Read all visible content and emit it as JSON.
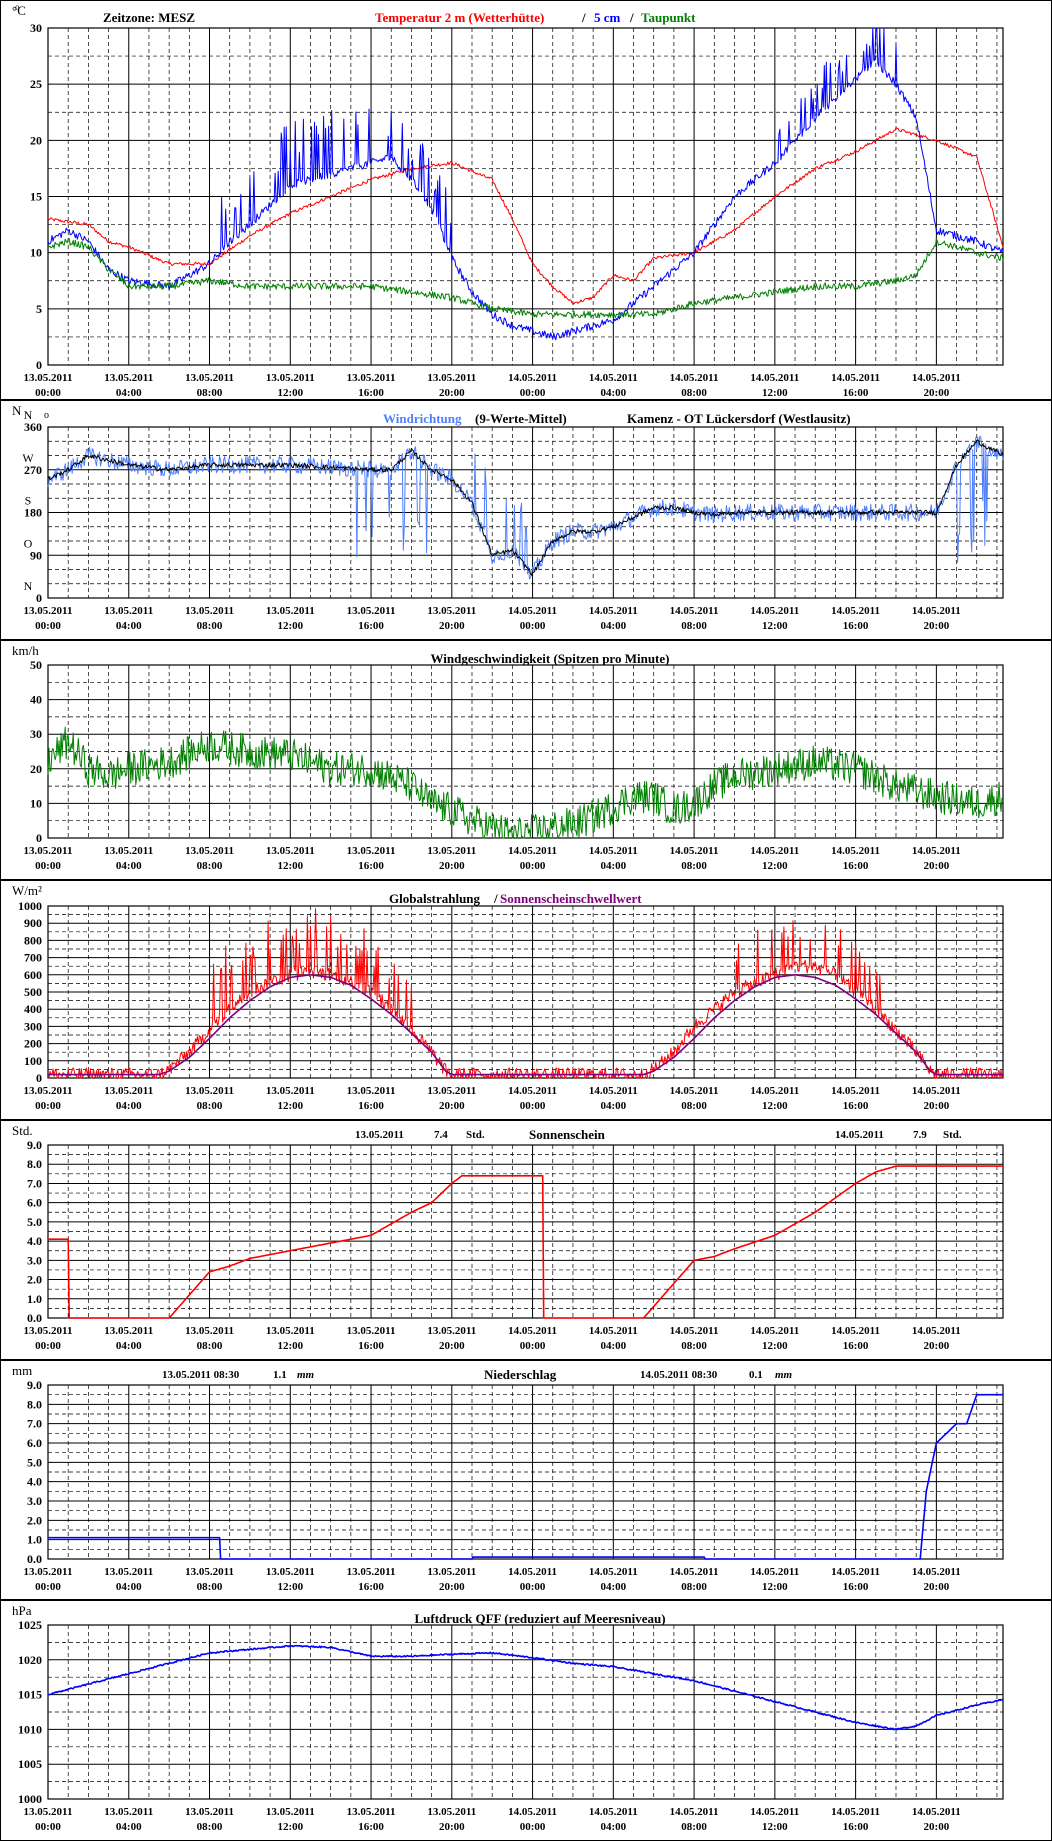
{
  "colors": {
    "red": "#ff0000",
    "blue": "#0000ff",
    "green": "#008000",
    "lightblue": "#4d7fff",
    "purple": "#800080",
    "black": "#000000"
  },
  "x_ticks": {
    "dates": [
      "13.05.2011",
      "13.05.2011",
      "13.05.2011",
      "13.05.2011",
      "13.05.2011",
      "13.05.2011",
      "14.05.2011",
      "14.05.2011",
      "14.05.2011",
      "14.05.2011",
      "14.05.2011",
      "14.05.2011"
    ],
    "times": [
      "00:00",
      "04:00",
      "08:00",
      "12:00",
      "16:00",
      "20:00",
      "00:00",
      "04:00",
      "08:00",
      "12:00",
      "16:00",
      "20:00"
    ]
  },
  "chart_data": [
    {
      "id": "temperature",
      "type": "line",
      "unit": "°C",
      "ylim": [
        0,
        30
      ],
      "ystep": 5,
      "yminor": 2.5,
      "ylabels": [
        "0",
        "5",
        "10",
        "15",
        "20",
        "25",
        "30"
      ],
      "header": {
        "zone": "Zeitzone: MESZ",
        "t1": "Temperatur 2 m (Wetterhütte)",
        "sep": "/",
        "t2": "5 cm",
        "sep2": "/",
        "t3": "Taupunkt"
      },
      "series": [
        {
          "name": "Temperatur 2 m (Wetterhütte)",
          "color": "#ff0000",
          "noise": 0.15,
          "x": [
            0,
            2,
            3,
            4,
            6,
            8,
            10,
            12,
            14,
            16,
            18,
            20,
            22,
            23,
            24,
            25,
            26,
            27,
            28,
            29,
            30,
            32,
            34,
            36,
            38,
            40,
            42,
            44,
            46,
            47.3
          ],
          "y": [
            13,
            12.5,
            11,
            10.5,
            9,
            9,
            11.5,
            13.5,
            15,
            16.5,
            17.5,
            18,
            16.5,
            13,
            9,
            7,
            5.5,
            6,
            8,
            7.5,
            9.5,
            10,
            12,
            15,
            17.5,
            19,
            21,
            20,
            18.5,
            10.5
          ]
        },
        {
          "name": "5 cm",
          "color": "#0000ff",
          "noise": 0.35,
          "x": [
            0,
            1,
            2,
            3,
            4,
            6,
            8,
            9,
            10,
            12,
            14,
            16,
            17,
            18,
            19,
            20,
            21,
            22,
            23,
            24,
            25,
            26,
            27,
            28,
            29,
            30,
            32,
            34,
            36,
            38,
            40,
            41,
            42,
            43,
            44,
            46,
            47.3
          ],
          "y": [
            11,
            12,
            11,
            8.5,
            7.5,
            7,
            9,
            11,
            12.5,
            16,
            17,
            18,
            18.5,
            16.5,
            14,
            9.5,
            6.5,
            4.5,
            3.5,
            3,
            2.5,
            3,
            3.5,
            4,
            5.5,
            7,
            10,
            15,
            18,
            22,
            25.5,
            27,
            25,
            22,
            12,
            11,
            10
          ],
          "spikes": [
            [
              8.5,
              16,
              6
            ],
            [
              16.5,
              20,
              5
            ],
            [
              36,
              42,
              4
            ]
          ]
        },
        {
          "name": "Taupunkt",
          "color": "#008000",
          "noise": 0.3,
          "x": [
            0,
            1,
            2,
            3,
            4,
            6,
            8,
            10,
            12,
            14,
            16,
            18,
            20,
            22,
            24,
            26,
            28,
            30,
            32,
            34,
            36,
            38,
            40,
            42,
            43,
            44,
            46,
            47.3
          ],
          "y": [
            10.5,
            11,
            10.5,
            8.5,
            7,
            7,
            7.5,
            7,
            7,
            7,
            7,
            6.5,
            6,
            5,
            4.5,
            4.5,
            4.5,
            4.5,
            5.5,
            6,
            6.5,
            7,
            7,
            7.5,
            8,
            11,
            10,
            9.5
          ]
        }
      ]
    },
    {
      "id": "wind_direction",
      "type": "line",
      "unit": "N",
      "ylim": [
        0,
        360
      ],
      "ystep": 90,
      "yminor": 30,
      "ylabels": [
        "0",
        "90",
        "180",
        "270",
        "360"
      ],
      "compass": [
        "N",
        "O",
        "S",
        "W",
        "N"
      ],
      "header": {
        "t1": "Windrichtung",
        "t1b": "(9-Werte-Mittel)",
        "t2": "Kamenz - OT Lückersdorf (Westlausitz)"
      },
      "series": [
        {
          "name": "Windrichtung",
          "color": "#4d7fff",
          "noise": 18,
          "x": [
            0,
            1,
            2,
            4,
            6,
            8,
            10,
            12,
            14,
            16,
            17,
            18,
            19,
            20,
            21,
            22,
            23,
            24,
            25,
            26,
            27,
            28,
            29,
            30,
            31,
            32,
            33,
            34,
            35,
            36,
            38,
            40,
            42,
            44,
            45,
            46,
            47.3
          ],
          "y": [
            250,
            270,
            300,
            280,
            270,
            280,
            280,
            280,
            275,
            270,
            270,
            310,
            270,
            250,
            200,
            90,
            100,
            50,
            120,
            140,
            140,
            150,
            170,
            190,
            190,
            180,
            175,
            180,
            180,
            180,
            180,
            180,
            180,
            180,
            280,
            330,
            300
          ],
          "spikes": [
            [
              15,
              19,
              -200
            ],
            [
              21,
              24,
              160
            ],
            [
              45,
              47,
              -230
            ]
          ]
        },
        {
          "name": "9-Werte-Mittel",
          "color": "#000000",
          "noise": 5,
          "x": [
            0,
            1,
            2,
            4,
            6,
            8,
            10,
            12,
            14,
            16,
            17,
            18,
            19,
            20,
            21,
            22,
            23,
            24,
            25,
            26,
            27,
            28,
            29,
            30,
            31,
            32,
            33,
            34,
            35,
            36,
            38,
            40,
            42,
            44,
            45,
            46,
            47.3
          ],
          "y": [
            250,
            270,
            300,
            280,
            270,
            280,
            280,
            280,
            275,
            270,
            270,
            310,
            270,
            250,
            200,
            90,
            100,
            50,
            120,
            140,
            140,
            150,
            170,
            190,
            190,
            180,
            175,
            180,
            180,
            180,
            180,
            180,
            180,
            180,
            280,
            330,
            300
          ]
        }
      ]
    },
    {
      "id": "wind_speed",
      "type": "line",
      "unit": "km/h",
      "ylim": [
        0,
        50
      ],
      "ystep": 10,
      "yminor": 5,
      "ylabels": [
        "0",
        "10",
        "20",
        "30",
        "40",
        "50"
      ],
      "header": {
        "t1": "Windgeschwindigkeit (Spitzen pro Minute)"
      },
      "series": [
        {
          "name": "Windgeschwindigkeit",
          "color": "#008000",
          "noise": 5,
          "x": [
            0,
            1,
            2,
            3,
            4,
            6,
            8,
            10,
            12,
            14,
            16,
            18,
            19,
            20,
            21,
            22,
            23,
            24,
            25,
            26,
            27,
            28,
            29,
            30,
            31,
            32,
            33,
            34,
            36,
            38,
            40,
            42,
            44,
            46,
            47.3
          ],
          "y": [
            22,
            28,
            20,
            18,
            20,
            22,
            27,
            25,
            24,
            20,
            20,
            15,
            10,
            8,
            5,
            3,
            1,
            2,
            3,
            4,
            6,
            9,
            12,
            12,
            8,
            10,
            15,
            18,
            20,
            22,
            20,
            15,
            12,
            10,
            12
          ]
        }
      ]
    },
    {
      "id": "global_radiation",
      "type": "line",
      "unit": "W/m²",
      "ylim": [
        0,
        1000
      ],
      "ystep": 100,
      "yminor": 50,
      "ylabels": [
        "0",
        "100",
        "200",
        "300",
        "400",
        "500",
        "600",
        "700",
        "800",
        "900",
        "1000"
      ],
      "header": {
        "t1": "Globalstrahlung",
        "sep": "/",
        "t2": "Sonnenscheinschwellwert"
      },
      "series": [
        {
          "name": "Globalstrahlung",
          "color": "#ff0000",
          "noise": 40,
          "x": [
            0,
            5.5,
            6,
            7,
            8,
            9,
            10,
            11,
            12,
            13,
            14,
            15,
            16,
            17,
            18,
            19,
            19.7,
            20,
            29.5,
            30,
            31,
            32,
            33,
            34,
            35,
            36,
            37,
            38,
            39,
            40,
            41,
            42,
            43,
            43.7,
            44,
            47.3
          ],
          "y": [
            20,
            20,
            50,
            150,
            280,
            400,
            500,
            560,
            600,
            620,
            600,
            560,
            500,
            400,
            280,
            150,
            40,
            20,
            20,
            50,
            150,
            300,
            400,
            500,
            550,
            600,
            650,
            650,
            600,
            500,
            400,
            280,
            150,
            40,
            20,
            20
          ],
          "spikes": [
            [
              8,
              18,
              380
            ],
            [
              34,
              42,
              300
            ]
          ]
        },
        {
          "name": "Sonnenscheinschwellwert",
          "color": "#800080",
          "noise": 0,
          "x": [
            0,
            5.5,
            6,
            7,
            8,
            9,
            10,
            11,
            12,
            13,
            14,
            15,
            16,
            17,
            18,
            19,
            19.7,
            20,
            29.5,
            30,
            31,
            32,
            33,
            34,
            35,
            36,
            37,
            38,
            39,
            40,
            41,
            42,
            43,
            43.7,
            44,
            47.3
          ],
          "y": [
            20,
            20,
            40,
            120,
            230,
            350,
            450,
            530,
            585,
            600,
            585,
            540,
            460,
            370,
            260,
            150,
            40,
            20,
            20,
            40,
            120,
            230,
            350,
            450,
            530,
            585,
            600,
            585,
            540,
            460,
            370,
            260,
            150,
            40,
            20,
            20
          ]
        }
      ]
    },
    {
      "id": "sunshine",
      "type": "line",
      "unit": "Std.",
      "ylim": [
        0,
        9
      ],
      "ystep": 1,
      "yminor": 0.5,
      "ylabels": [
        "0.0",
        "1.0",
        "2.0",
        "3.0",
        "4.0",
        "5.0",
        "6.0",
        "7.0",
        "8.0",
        "9.0"
      ],
      "header": {
        "d1": "13.05.2011",
        "v1": "7.4",
        "u1": "Std.",
        "t1": "Sonnenschein",
        "d2": "14.05.2011",
        "v2": "7.9",
        "u2": "Std."
      },
      "series": [
        {
          "name": "Sonnenschein",
          "color": "#ff0000",
          "noise": 0,
          "x": [
            0,
            1,
            1.05,
            6,
            8,
            9,
            10,
            12,
            14,
            16,
            18,
            19,
            20,
            20.5,
            24.5,
            24.55,
            29.5,
            32,
            33,
            34,
            36,
            38,
            40,
            41,
            42,
            47.3
          ],
          "y": [
            4.1,
            4.1,
            0,
            0,
            2.4,
            2.7,
            3.1,
            3.5,
            3.9,
            4.3,
            5.5,
            6,
            7,
            7.4,
            7.4,
            0,
            0,
            3,
            3.2,
            3.6,
            4.3,
            5.5,
            7,
            7.6,
            7.9,
            7.9
          ]
        }
      ]
    },
    {
      "id": "precipitation",
      "type": "line",
      "unit": "mm",
      "ylim": [
        0,
        9
      ],
      "ystep": 1,
      "yminor": 0.5,
      "ylabels": [
        "0.0",
        "1.0",
        "2.0",
        "3.0",
        "4.0",
        "5.0",
        "6.0",
        "7.0",
        "8.0",
        "9.0"
      ],
      "header": {
        "d1": "13.05.2011 08:30",
        "v1": "1.1",
        "u1": "mm",
        "t1": "Niederschlag",
        "d2": "14.05.2011 08:30",
        "v2": "0.1",
        "u2": "mm"
      },
      "series": [
        {
          "name": "Niederschlag",
          "color": "#0000ff",
          "noise": 0,
          "x": [
            0,
            8.5,
            8.55,
            21,
            21.05,
            32.5,
            32.55,
            43.2,
            43.5,
            44,
            44.5,
            45,
            45.5,
            46,
            46.5,
            47.3
          ],
          "y": [
            1.1,
            1.1,
            0,
            0,
            0.1,
            0.1,
            0,
            0,
            3.5,
            6,
            6.5,
            7,
            7,
            8.5,
            8.5,
            8.5
          ]
        }
      ]
    },
    {
      "id": "pressure",
      "type": "line",
      "unit": "hPa",
      "ylim": [
        1000,
        1025
      ],
      "ystep": 5,
      "yminor": 2.5,
      "ylabels": [
        "1000",
        "1005",
        "1010",
        "1015",
        "1020",
        "1025"
      ],
      "header": {
        "t1": "Luftdruck QFF (reduziert auf Meeresniveau)"
      },
      "series": [
        {
          "name": "Luftdruck QFF",
          "color": "#0000ff",
          "noise": 0.1,
          "x": [
            0,
            2,
            4,
            6,
            8,
            10,
            12,
            14,
            16,
            18,
            20,
            22,
            24,
            26,
            28,
            30,
            32,
            34,
            36,
            38,
            40,
            42,
            43,
            44,
            46,
            47.3
          ],
          "y": [
            1015,
            1016.5,
            1018,
            1019.5,
            1021,
            1021.5,
            1022,
            1021.8,
            1020.5,
            1020.5,
            1020.8,
            1021,
            1020.3,
            1019.5,
            1019,
            1018,
            1017,
            1015.5,
            1014,
            1012.5,
            1011,
            1010,
            1010.5,
            1012,
            1013.5,
            1014.3
          ]
        }
      ]
    }
  ]
}
